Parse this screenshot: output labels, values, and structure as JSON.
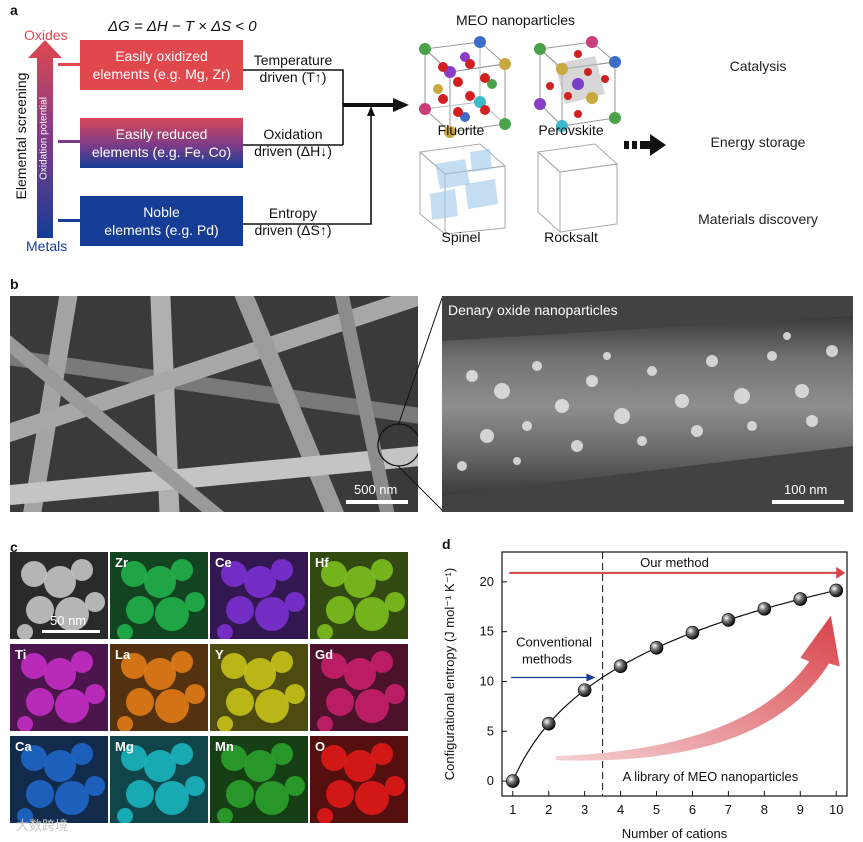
{
  "panel_a": {
    "label": "a",
    "equation": "ΔG = ΔH − T × ΔS < 0",
    "vertical_axis_label": "Elemental screening",
    "arrow_inner_label": "Oxidation potential",
    "top_label": "Oxides",
    "bottom_label": "Metals",
    "boxes": [
      {
        "line1": "Easily oxidized",
        "line2": "elements (e.g. Mg, Zr)"
      },
      {
        "line1": "Easily reduced",
        "line2": "elements (e.g. Fe, Co)"
      },
      {
        "line1": "Noble",
        "line2": "elements (e.g. Pd)"
      }
    ],
    "drivers": [
      {
        "line1": "Temperature",
        "line2": "driven (T↑)"
      },
      {
        "line1": "Oxidation",
        "line2": "driven (ΔH↓)"
      },
      {
        "line1": "Entropy",
        "line2": "driven (ΔS↑)"
      }
    ],
    "meo_title": "MEO nanoparticles",
    "structures": [
      "Fluorite",
      "Perovskite",
      "Spinel",
      "Rocksalt"
    ],
    "applications": [
      {
        "label": "Catalysis",
        "color": "#f4c4c6"
      },
      {
        "label": "Energy storage",
        "color": "#c9e6c2"
      },
      {
        "label": "Materials discovery",
        "color": "#c6c6e8"
      }
    ]
  },
  "panel_b": {
    "label": "b",
    "inset_title": "Denary oxide nanoparticles",
    "scale_left": "500 nm",
    "scale_right": "100 nm"
  },
  "panel_c": {
    "label": "c",
    "scale": "50 nm",
    "maps": [
      {
        "el": "",
        "color": "#9a9a9a"
      },
      {
        "el": "Zr",
        "color": "#21b04a"
      },
      {
        "el": "Ce",
        "color": "#7a2fd0"
      },
      {
        "el": "Hf",
        "color": "#7bbf1e"
      },
      {
        "el": "Ti",
        "color": "#c42cc4"
      },
      {
        "el": "La",
        "color": "#e07a16"
      },
      {
        "el": "Y",
        "color": "#c8c218"
      },
      {
        "el": "Gd",
        "color": "#c61f6a"
      },
      {
        "el": "Ca",
        "color": "#1f66c8"
      },
      {
        "el": "Mg",
        "color": "#19b4bf"
      },
      {
        "el": "Mn",
        "color": "#2aa02a"
      },
      {
        "el": "O",
        "color": "#e01818"
      }
    ]
  },
  "panel_d": {
    "label": "d",
    "our_method": "Our method",
    "conventional_line1": "Conventional",
    "conventional_line2": "methods",
    "library_label": "A library of MEO nanoparticles",
    "watermark": "大数跨境"
  },
  "chart_data": {
    "type": "scatter",
    "title": "",
    "xlabel": "Number of cations",
    "ylabel": "Configurational entropy (J mol⁻¹ K⁻¹)",
    "x": [
      1,
      2,
      3,
      4,
      5,
      6,
      7,
      8,
      9,
      10
    ],
    "y": [
      0,
      5.76,
      9.13,
      11.53,
      13.38,
      14.9,
      16.18,
      17.29,
      18.27,
      19.14
    ],
    "xlim": [
      0.7,
      10.3
    ],
    "ylim": [
      -1.5,
      23
    ],
    "xticks": [
      1,
      2,
      3,
      4,
      5,
      6,
      7,
      8,
      9,
      10
    ],
    "yticks": [
      0,
      5,
      10,
      15,
      20
    ],
    "divider_x": 3.5,
    "grid": false
  }
}
